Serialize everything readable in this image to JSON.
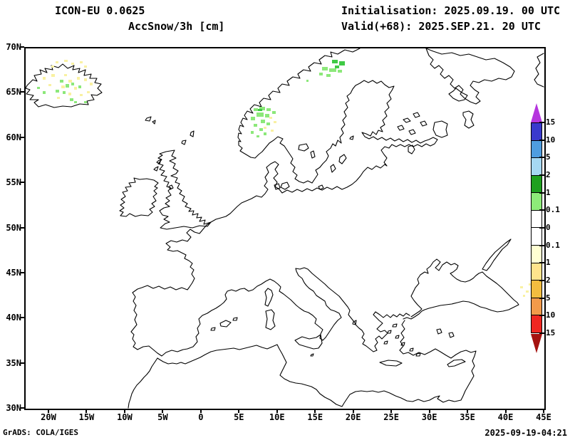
{
  "header": {
    "model": "ICON-EU 0.0625",
    "field": "AccSnow/3h [cm]",
    "init_label": "Initialisation: 2025.09.19. 00 UTC",
    "valid_label": "Valid(+68): 2025.SEP.21. 20 UTC"
  },
  "footer": {
    "credit": "GrADS: COLA/IGES",
    "created": "2025-09-19-04:21"
  },
  "axes": {
    "lat_labels": [
      "70N",
      "65N",
      "60N",
      "55N",
      "50N",
      "45N",
      "40N",
      "35N",
      "30N"
    ],
    "lon_labels": [
      "20W",
      "15W",
      "10W",
      "5W",
      "0",
      "5E",
      "10E",
      "15E",
      "20E",
      "25E",
      "30E",
      "35E",
      "40E",
      "45E"
    ]
  },
  "chart_data": {
    "type": "heatmap",
    "title": "AccSnow/3h [cm]",
    "model": "ICON-EU 0.0625",
    "initialisation": "2025.09.19. 00 UTC",
    "valid": "2025.SEP.21. 20 UTC",
    "forecast_hour": "+68",
    "units": "cm",
    "map_extent": {
      "lon_min_deg": -22.5,
      "lon_max_deg": 45,
      "lat_min_deg": 30,
      "lat_max_deg": 70
    },
    "grid": false,
    "legend_position": "right-vertical",
    "colorbar": {
      "labels_top_to_bottom": [
        "15",
        "10",
        "5",
        "2",
        "1",
        "0.1",
        "0",
        "0.1",
        "1",
        "2",
        "5",
        "10",
        "15"
      ],
      "segment_colors_top_to_bottom": [
        "#3a3acd",
        "#4f9ddf",
        "#a6d8f2",
        "#1fa01f",
        "#8deb79",
        "#ffffff",
        "#ffffff",
        "#ffffd2",
        "#ffe48c",
        "#f3bd3f",
        "#f29a4a",
        "#ef2722"
      ],
      "arrow_top_color": "#b535de",
      "arrow_bottom_color": "#a51310",
      "meaning": "upper half = 3h snow accumulation (cm), lower half = 3h snow melt (cm)"
    },
    "data_regions": [
      {
        "region": "Iceland interior",
        "signal": "scattered 0.1-1 cm accumulation and trace melt speckles"
      },
      {
        "region": "Southern Norway mountains",
        "signal": "patchy 0.1-1 cm accumulation, trace melt"
      },
      {
        "region": "Northern Norway / Sweden mountains",
        "signal": "patchy 0.1-2 cm accumulation"
      },
      {
        "region": "Caucasus",
        "signal": "trace melt speckles"
      },
      {
        "region": "rest of domain",
        "signal": "0 (no change)"
      }
    ]
  },
  "palette": {
    "light_green": "#8ce87a",
    "mid_green": "#3fca45",
    "pale_yellow": "#f9f1a2",
    "coast": "#000000"
  }
}
